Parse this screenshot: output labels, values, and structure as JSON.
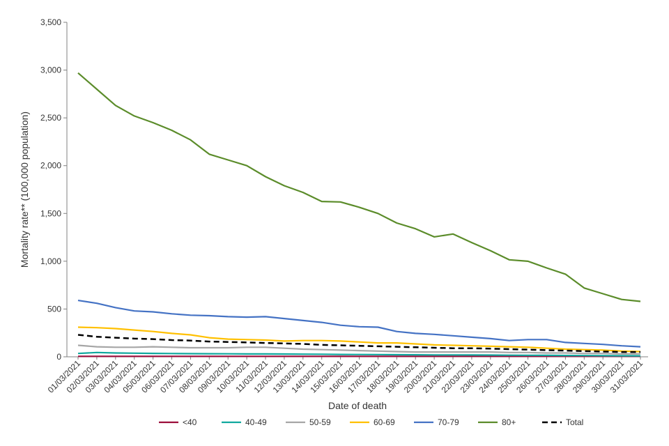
{
  "chart_data": {
    "type": "line",
    "title": "",
    "xlabel": "Date of death",
    "ylabel": "Mortality rate** (100,000 population)",
    "ylim": [
      0,
      3500
    ],
    "yticks": [
      0,
      500,
      1000,
      1500,
      2000,
      2500,
      3000,
      3500
    ],
    "ytick_labels": [
      "0",
      "500",
      "1,000",
      "1,500",
      "2,000",
      "2,500",
      "3,000",
      "3,500"
    ],
    "grid": false,
    "legend_position": "bottom",
    "x": [
      "01/03/2021",
      "02/03/2021",
      "03/03/2021",
      "04/03/2021",
      "05/03/2021",
      "06/03/2021",
      "07/03/2021",
      "08/03/2021",
      "09/03/2021",
      "10/03/2021",
      "11/03/2021",
      "12/03/2021",
      "13/03/2021",
      "14/03/2021",
      "15/03/2021",
      "16/03/2021",
      "17/03/2021",
      "18/03/2021",
      "19/03/2021",
      "20/03/2021",
      "21/03/2021",
      "22/03/2021",
      "23/03/2021",
      "24/03/2021",
      "25/03/2021",
      "26/03/2021",
      "27/03/2021",
      "28/03/2021",
      "29/03/2021",
      "30/03/2021",
      "31/03/2021"
    ],
    "series": [
      {
        "name": "<40",
        "color": "#9b0d3b",
        "dash": false,
        "values": [
          5,
          5,
          5,
          5,
          5,
          5,
          5,
          5,
          5,
          5,
          5,
          5,
          5,
          5,
          5,
          5,
          5,
          5,
          5,
          5,
          5,
          5,
          5,
          5,
          5,
          5,
          5,
          5,
          5,
          5,
          5
        ]
      },
      {
        "name": "40-49",
        "color": "#10a89e",
        "dash": false,
        "values": [
          35,
          45,
          40,
          38,
          36,
          34,
          33,
          32,
          31,
          30,
          30,
          29,
          28,
          27,
          25,
          24,
          23,
          22,
          21,
          20,
          20,
          19,
          18,
          17,
          16,
          15,
          14,
          13,
          12,
          11,
          10
        ]
      },
      {
        "name": "50-59",
        "color": "#a6a6a6",
        "dash": false,
        "values": [
          120,
          105,
          100,
          100,
          105,
          100,
          95,
          95,
          95,
          100,
          100,
          90,
          80,
          75,
          70,
          65,
          60,
          55,
          50,
          50,
          50,
          50,
          50,
          45,
          45,
          40,
          40,
          35,
          35,
          30,
          30
        ]
      },
      {
        "name": "60-69",
        "color": "#ffc000",
        "dash": false,
        "values": [
          310,
          305,
          295,
          280,
          265,
          245,
          230,
          200,
          185,
          180,
          175,
          165,
          170,
          170,
          165,
          155,
          145,
          145,
          135,
          125,
          120,
          115,
          110,
          105,
          100,
          90,
          80,
          75,
          70,
          60,
          55
        ]
      },
      {
        "name": "70-79",
        "color": "#4472c4",
        "dash": false,
        "values": [
          590,
          560,
          515,
          480,
          470,
          450,
          435,
          430,
          420,
          415,
          420,
          400,
          380,
          360,
          330,
          315,
          310,
          265,
          245,
          235,
          220,
          205,
          190,
          170,
          180,
          180,
          150,
          140,
          130,
          115,
          105
        ]
      },
      {
        "name": "80+",
        "color": "#5b8c2a",
        "dash": false,
        "values": [
          2970,
          2800,
          2630,
          2520,
          2450,
          2370,
          2270,
          2120,
          2060,
          2000,
          1885,
          1790,
          1720,
          1625,
          1620,
          1565,
          1500,
          1400,
          1340,
          1255,
          1285,
          1195,
          1110,
          1015,
          1000,
          930,
          865,
          720,
          660,
          600,
          580
        ]
      },
      {
        "name": "Total",
        "color": "#000000",
        "dash": true,
        "values": [
          230,
          210,
          200,
          190,
          185,
          175,
          170,
          160,
          155,
          150,
          145,
          140,
          135,
          125,
          120,
          115,
          110,
          105,
          100,
          95,
          90,
          90,
          85,
          80,
          75,
          70,
          65,
          60,
          55,
          50,
          50
        ]
      }
    ]
  }
}
